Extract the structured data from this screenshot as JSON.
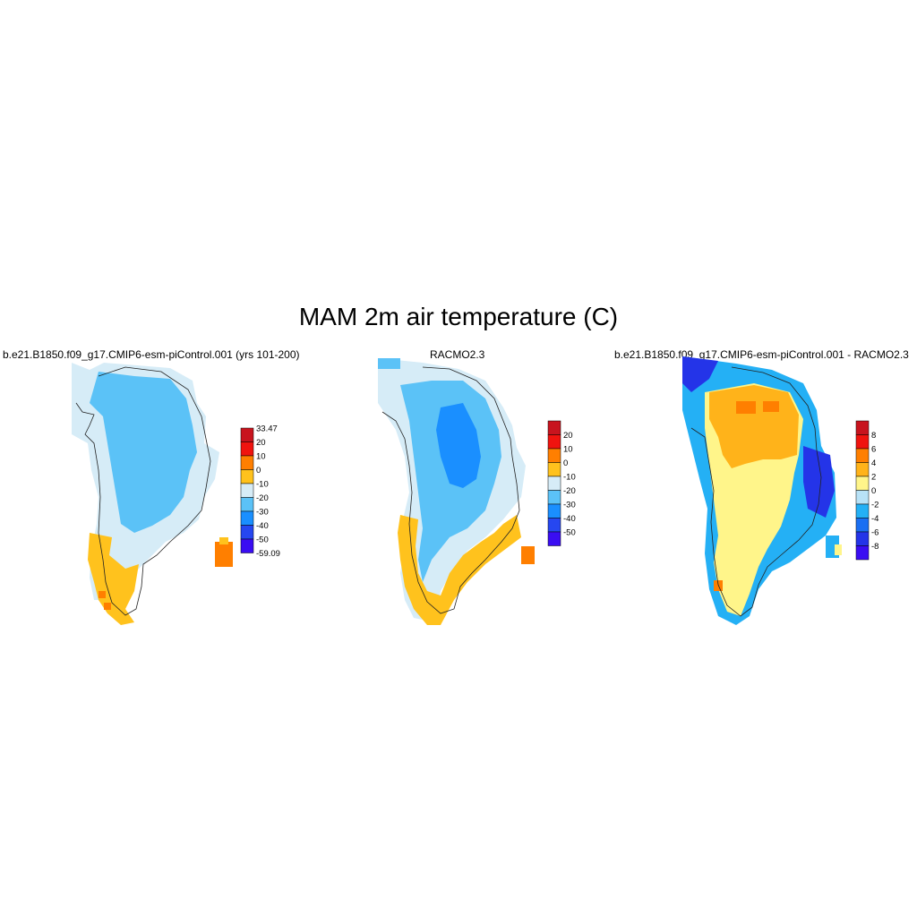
{
  "figure_title": "MAM 2m air temperature (C)",
  "panels": [
    {
      "title": "b.e21.B1850.f09_g17.CMIP6-esm-piControl.001 (yrs 101-200)",
      "colorbar": {
        "labels": [
          "33.47",
          "20",
          "10",
          "0",
          "-10",
          "-20",
          "-30",
          "-40",
          "-50",
          "-59.09"
        ],
        "colors": [
          "#c8141e",
          "#f0140f",
          "#ff7f00",
          "#ffc21d",
          "#d6ecf7",
          "#5bc2f7",
          "#1a8fff",
          "#2647f0",
          "#3a0df2"
        ]
      }
    },
    {
      "title": "RACMO2.3",
      "colorbar": {
        "labels": [
          "20",
          "10",
          "0",
          "-10",
          "-20",
          "-30",
          "-40",
          "-50"
        ],
        "colors": [
          "#c8141e",
          "#f0140f",
          "#ff7f00",
          "#ffc21d",
          "#d6ecf7",
          "#5bc2f7",
          "#1a8fff",
          "#2647f0",
          "#3a0df2"
        ]
      }
    },
    {
      "title": "b.e21.B1850.f09_g17.CMIP6-esm-piControl.001 - RACMO2.3",
      "colorbar": {
        "labels": [
          "8",
          "6",
          "4",
          "2",
          "0",
          "-2",
          "-4",
          "-6",
          "-8"
        ],
        "colors": [
          "#c8141e",
          "#f0140f",
          "#ff7f00",
          "#ffb31a",
          "#fff58a",
          "#b8e2f7",
          "#24b0f5",
          "#1a6ff2",
          "#2434e8",
          "#3a0df2"
        ]
      }
    }
  ]
}
